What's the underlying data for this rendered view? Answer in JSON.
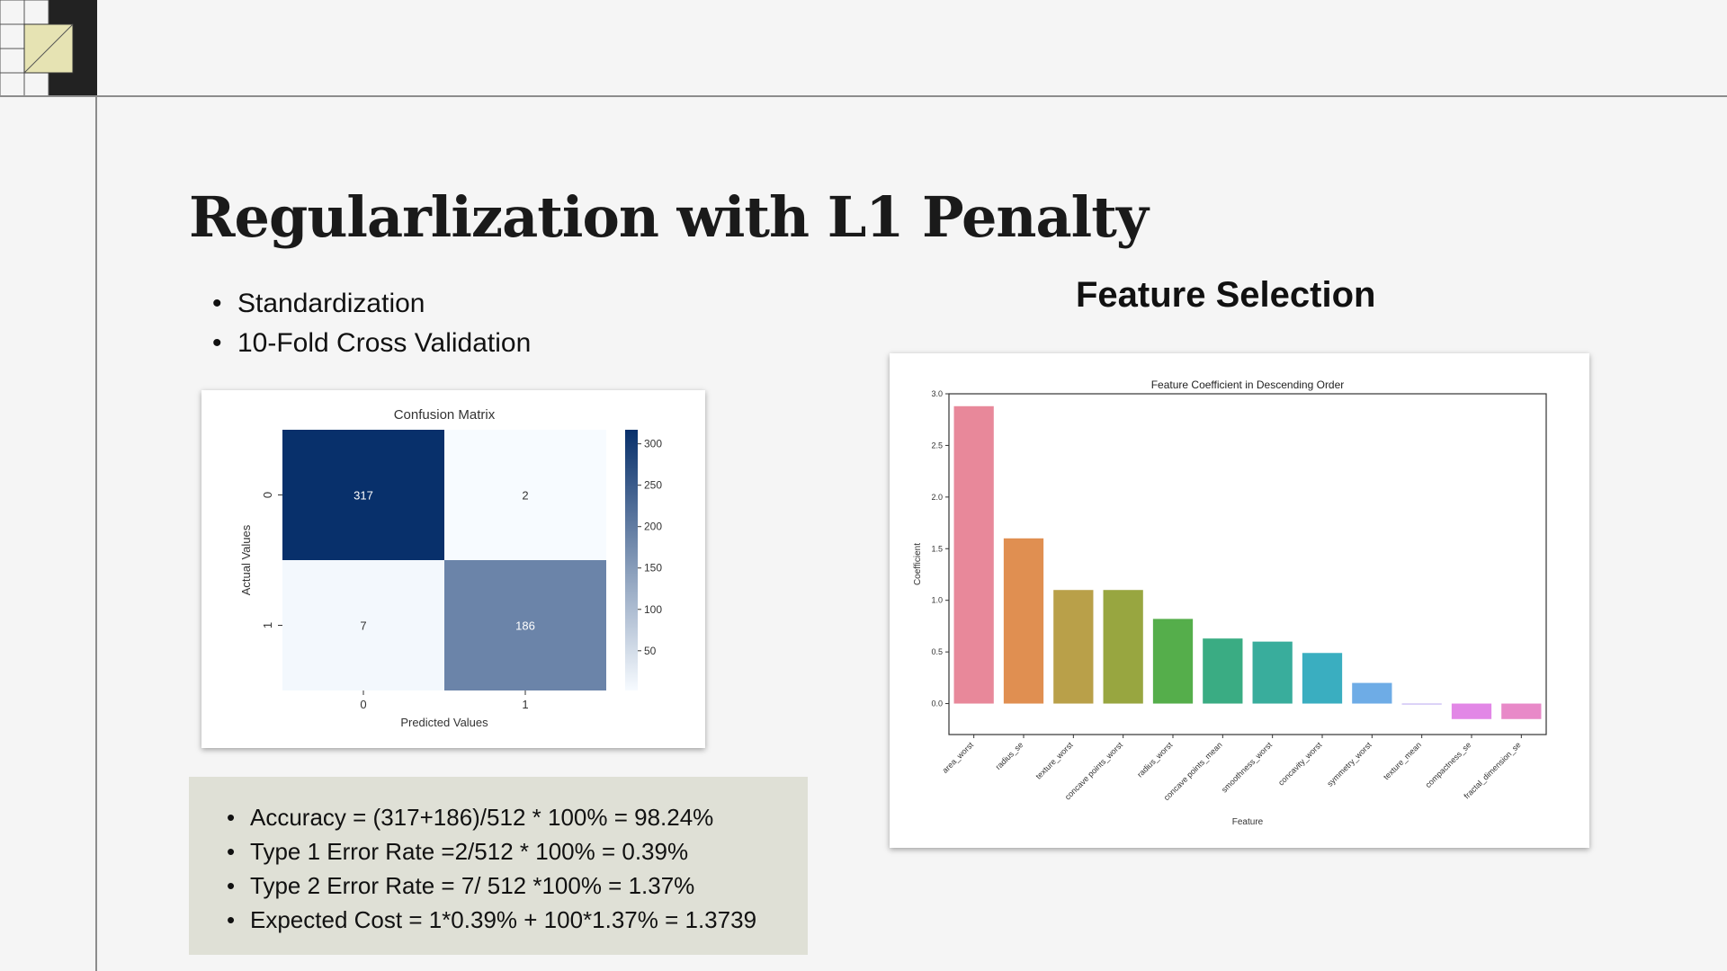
{
  "slide": {
    "title": "Regularlization with L1 Penalty",
    "bullets": [
      "Standardization",
      "10-Fold Cross Validation"
    ],
    "right_title": "Feature Selection",
    "metrics": [
      "Accuracy = (317+186)/512 * 100% = 98.24%",
      "Type 1 Error Rate =2/512 * 100% = 0.39%",
      "Type 2 Error Rate = 7/ 512 *100% = 1.37%",
      "Expected Cost = 1*0.39% + 100*1.37% = 1.3739"
    ]
  },
  "chart_data": [
    {
      "type": "heatmap",
      "title": "Confusion Matrix",
      "xlabel": "Predicted Values",
      "ylabel": "Actual Values",
      "x_categories": [
        "0",
        "1"
      ],
      "y_categories": [
        "0",
        "1"
      ],
      "values": [
        [
          317,
          2
        ],
        [
          7,
          186
        ]
      ],
      "colorbar_ticks": [
        50,
        100,
        150,
        200,
        250,
        300
      ],
      "colorbar_range": [
        2,
        317
      ],
      "colormap": "Blues"
    },
    {
      "type": "bar",
      "title": "Feature Coefficient in Descending Order",
      "xlabel": "Feature",
      "ylabel": "Coefficient",
      "categories": [
        "area_worst",
        "radius_se",
        "texture_worst",
        "concave points_worst",
        "radius_worst",
        "concave points_mean",
        "smoothness_worst",
        "concavity_worst",
        "symmetry_worst",
        "texture_mean",
        "compactness_se",
        "fractal_dimension_se"
      ],
      "values": [
        2.88,
        1.6,
        1.1,
        1.1,
        0.82,
        0.63,
        0.6,
        0.49,
        0.2,
        0.0,
        -0.15,
        -0.15
      ],
      "colors": [
        "#e8889a",
        "#e08f51",
        "#b9a049",
        "#98a640",
        "#55ae4b",
        "#3aac83",
        "#39ad9c",
        "#3aaec0",
        "#6eace6",
        "#b9a7f0",
        "#e287e6",
        "#e889c8"
      ],
      "yticks": [
        0.0,
        0.5,
        1.0,
        1.5,
        2.0,
        2.5,
        3.0
      ],
      "ylim": [
        -0.3,
        3.0
      ]
    }
  ]
}
